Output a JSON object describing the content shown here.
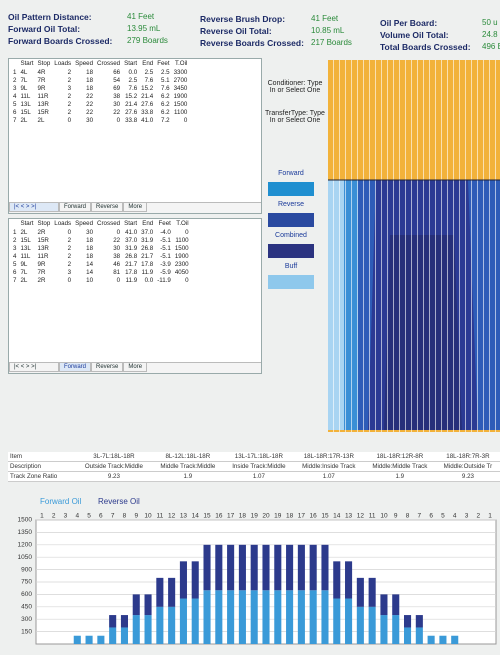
{
  "header": {
    "fields": [
      {
        "label": "Oil Pattern Distance:",
        "value": "41 Feet"
      },
      {
        "label": "Forward Oil Total:",
        "value": "13.95 mL"
      },
      {
        "label": "Forward Boards Crossed:",
        "value": "279 Boards"
      },
      {
        "label": "Reverse Brush Drop:",
        "value": "41 Feet"
      },
      {
        "label": "Reverse Oil Total:",
        "value": "10.85 mL"
      },
      {
        "label": "Reverse Boards Crossed:",
        "value": "217 Boards"
      },
      {
        "label": "Oil Per Board:",
        "value": "50 u"
      },
      {
        "label": "Volume Oil Total:",
        "value": "24.8"
      },
      {
        "label": "Total Boards Crossed:",
        "value": "496 B"
      }
    ]
  },
  "forward_table": {
    "columns": [
      "Start",
      "Stop",
      "Loads",
      "Speed",
      "Crossed",
      "Start",
      "End",
      "Feet",
      "T.Oil"
    ],
    "rows": [
      [
        "1",
        "4L",
        "4R",
        "2",
        "18",
        "66",
        "0.0",
        "2.5",
        "2.5",
        "3300"
      ],
      [
        "2",
        "7L",
        "7R",
        "2",
        "18",
        "54",
        "2.5",
        "7.6",
        "5.1",
        "2700"
      ],
      [
        "3",
        "9L",
        "9R",
        "3",
        "18",
        "69",
        "7.6",
        "15.2",
        "7.6",
        "3450"
      ],
      [
        "4",
        "11L",
        "11R",
        "2",
        "22",
        "38",
        "15.2",
        "21.4",
        "6.2",
        "1900"
      ],
      [
        "5",
        "13L",
        "13R",
        "2",
        "22",
        "30",
        "21.4",
        "27.6",
        "6.2",
        "1500"
      ],
      [
        "6",
        "15L",
        "15R",
        "2",
        "22",
        "22",
        "27.6",
        "33.8",
        "6.2",
        "1100"
      ],
      [
        "7",
        "2L",
        "2L",
        "0",
        "30",
        "0",
        "33.8",
        "41.0",
        "7.2",
        "0"
      ]
    ],
    "tabs": [
      "Forward",
      "Reverse",
      "More"
    ]
  },
  "reverse_table": {
    "columns": [
      "Start",
      "Stop",
      "Loads",
      "Speed",
      "Crossed",
      "Start",
      "End",
      "Feet",
      "T.Oil"
    ],
    "rows": [
      [
        "1",
        "2L",
        "2R",
        "0",
        "30",
        "0",
        "41.0",
        "37.0",
        "-4.0",
        "0"
      ],
      [
        "2",
        "15L",
        "15R",
        "2",
        "18",
        "22",
        "37.0",
        "31.9",
        "-5.1",
        "1100"
      ],
      [
        "3",
        "13L",
        "13R",
        "2",
        "18",
        "30",
        "31.9",
        "26.8",
        "-5.1",
        "1500"
      ],
      [
        "4",
        "11L",
        "11R",
        "2",
        "18",
        "38",
        "26.8",
        "21.7",
        "-5.1",
        "1900"
      ],
      [
        "5",
        "9L",
        "9R",
        "2",
        "14",
        "46",
        "21.7",
        "17.8",
        "-3.9",
        "2300"
      ],
      [
        "6",
        "7L",
        "7R",
        "3",
        "14",
        "81",
        "17.8",
        "11.9",
        "-5.9",
        "4050"
      ],
      [
        "7",
        "2L",
        "2R",
        "0",
        "10",
        "0",
        "11.9",
        "0.0",
        "-11.9",
        "0"
      ]
    ],
    "tabs": [
      "Forward",
      "Reverse",
      "More"
    ]
  },
  "side": {
    "conditioner": "Conditioner: Type In or Select One",
    "transfer": "TransferType: Type In or Select One",
    "legend": [
      {
        "name": "Forward",
        "color": "#1f8fd0"
      },
      {
        "name": "Reverse",
        "color": "#2a4aa0"
      },
      {
        "name": "Combined",
        "color": "#2b3380"
      },
      {
        "name": "Buff",
        "color": "#8ec8ec"
      }
    ]
  },
  "track_zone": {
    "rows": [
      [
        "Item",
        "3L-7L:18L-18R",
        "8L-12L:18L-18R",
        "13L-17L:18L-18R",
        "18L-18R:17R-13R",
        "18L-18R:12R-8R",
        "18L-18R:7R-3R"
      ],
      [
        "Description",
        "Outside Track:Middle",
        "Middle Track:Middle",
        "Inside Track:Middle",
        "Middle:Inside Track",
        "Middle:Middle Track",
        "Middle:Outside Tr"
      ],
      [
        "Track Zone Ratio",
        "9.23",
        "1.9",
        "1.07",
        "1.07",
        "1.9",
        "9.23"
      ]
    ]
  },
  "chart_data": {
    "type": "bar",
    "stacked": true,
    "categories": [
      "1",
      "2",
      "3",
      "4",
      "5",
      "6",
      "7",
      "8",
      "9",
      "10",
      "11",
      "12",
      "13",
      "14",
      "15",
      "16",
      "17",
      "18",
      "19",
      "20",
      "19",
      "18",
      "17",
      "16",
      "15",
      "14",
      "13",
      "12",
      "11",
      "10",
      "9",
      "8",
      "7",
      "6",
      "5",
      "4",
      "3",
      "2",
      "1"
    ],
    "series": [
      {
        "name": "Forward Oil",
        "color": "#3a9ad8",
        "values": [
          0,
          0,
          0,
          100,
          100,
          100,
          200,
          200,
          350,
          350,
          450,
          450,
          550,
          550,
          650,
          650,
          650,
          650,
          650,
          650,
          650,
          650,
          650,
          650,
          650,
          550,
          550,
          450,
          450,
          350,
          350,
          200,
          200,
          100,
          100,
          100,
          0,
          0,
          0
        ]
      },
      {
        "name": "Reverse Oil",
        "color": "#2c3a8c",
        "values": [
          0,
          0,
          0,
          0,
          0,
          0,
          150,
          150,
          250,
          250,
          350,
          350,
          450,
          450,
          550,
          550,
          550,
          550,
          550,
          550,
          550,
          550,
          550,
          550,
          550,
          450,
          450,
          350,
          350,
          250,
          250,
          150,
          150,
          0,
          0,
          0,
          0,
          0,
          0
        ]
      }
    ],
    "ylim": [
      0,
      1500
    ],
    "yticks": [
      150,
      300,
      450,
      600,
      750,
      900,
      1050,
      1200,
      1350,
      1500
    ],
    "grid": true
  }
}
